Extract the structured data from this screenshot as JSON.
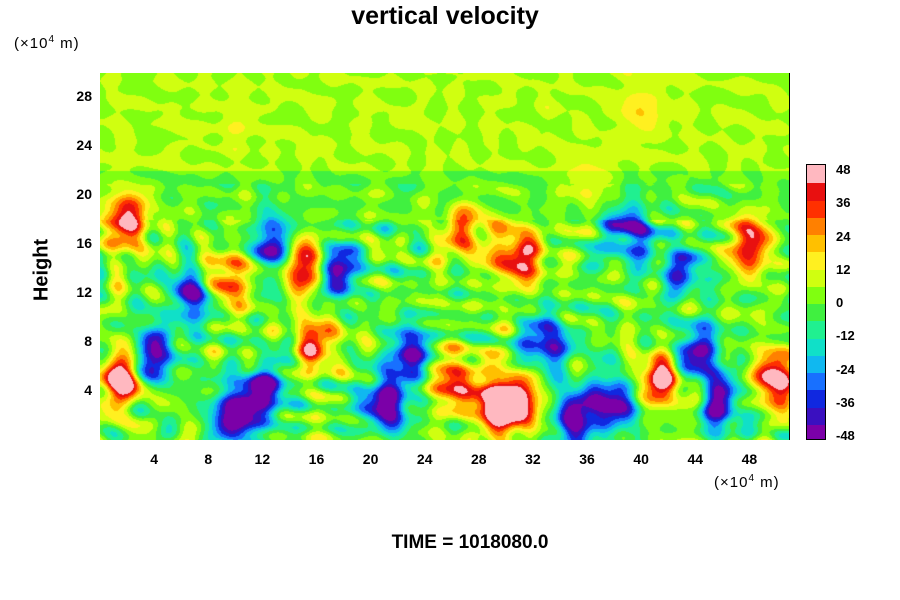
{
  "chart_data": {
    "type": "heatmap",
    "title": "vertical velocity",
    "ylabel": "Height",
    "y_unit": {
      "prefix": "(×10",
      "exp": "4",
      "suffix": " m)"
    },
    "x_unit": {
      "prefix": "(×10",
      "exp": "4",
      "suffix": " m)"
    },
    "x_ticks": [
      4,
      8,
      12,
      16,
      20,
      24,
      28,
      32,
      36,
      40,
      44,
      48
    ],
    "y_ticks": [
      4,
      8,
      12,
      16,
      20,
      24,
      28
    ],
    "xlim": [
      0,
      51
    ],
    "ylim": [
      0,
      30
    ],
    "colorbar": {
      "ticks": [
        48,
        36,
        24,
        12,
        0,
        -12,
        -24,
        -36,
        -48
      ],
      "range": [
        -48,
        48
      ],
      "colors": [
        "#7b00a8",
        "#3a10c0",
        "#1028e0",
        "#1870ff",
        "#10b8f0",
        "#10e0c8",
        "#20f090",
        "#40f040",
        "#80ff10",
        "#d0ff10",
        "#fff020",
        "#ffc000",
        "#ff8000",
        "#ff3000",
        "#e81010",
        "#ffb8c0"
      ]
    },
    "cells": [
      {
        "x": 1.5,
        "y": 5,
        "value": 48
      },
      {
        "x": 2,
        "y": 18,
        "value": 42
      },
      {
        "x": 4,
        "y": 7,
        "value": -40
      },
      {
        "x": 7,
        "y": 12,
        "value": -45
      },
      {
        "x": 9,
        "y": 13,
        "value": 40
      },
      {
        "x": 10,
        "y": 2,
        "value": -48
      },
      {
        "x": 12,
        "y": 4,
        "value": -42
      },
      {
        "x": 15,
        "y": 14.5,
        "value": 48
      },
      {
        "x": 13,
        "y": 16,
        "value": -40
      },
      {
        "x": 17.5,
        "y": 14,
        "value": -42
      },
      {
        "x": 16,
        "y": 8,
        "value": 32
      },
      {
        "x": 21,
        "y": 3,
        "value": -48
      },
      {
        "x": 23,
        "y": 7,
        "value": -40
      },
      {
        "x": 26,
        "y": 5,
        "value": 36
      },
      {
        "x": 27,
        "y": 17,
        "value": 30
      },
      {
        "x": 29,
        "y": 3,
        "value": 48
      },
      {
        "x": 31,
        "y": 3,
        "value": 48
      },
      {
        "x": 31,
        "y": 15,
        "value": 44
      },
      {
        "x": 33,
        "y": 8,
        "value": -40
      },
      {
        "x": 35,
        "y": 2,
        "value": -46
      },
      {
        "x": 38,
        "y": 3,
        "value": -44
      },
      {
        "x": 39,
        "y": 17,
        "value": -40
      },
      {
        "x": 41.5,
        "y": 5,
        "value": 48
      },
      {
        "x": 43,
        "y": 14,
        "value": -30
      },
      {
        "x": 44,
        "y": 7,
        "value": -44
      },
      {
        "x": 46,
        "y": 3,
        "value": -36
      },
      {
        "x": 50,
        "y": 5,
        "value": 48
      },
      {
        "x": 48,
        "y": 16,
        "value": 38
      },
      {
        "x": 36,
        "y": 21,
        "value": 12
      },
      {
        "x": 25,
        "y": 24,
        "value": 0
      },
      {
        "x": 10,
        "y": 26,
        "value": 4
      },
      {
        "x": 40,
        "y": 27,
        "value": 10
      }
    ]
  },
  "footer": {
    "time_label": "TIME = 1018080.0"
  }
}
